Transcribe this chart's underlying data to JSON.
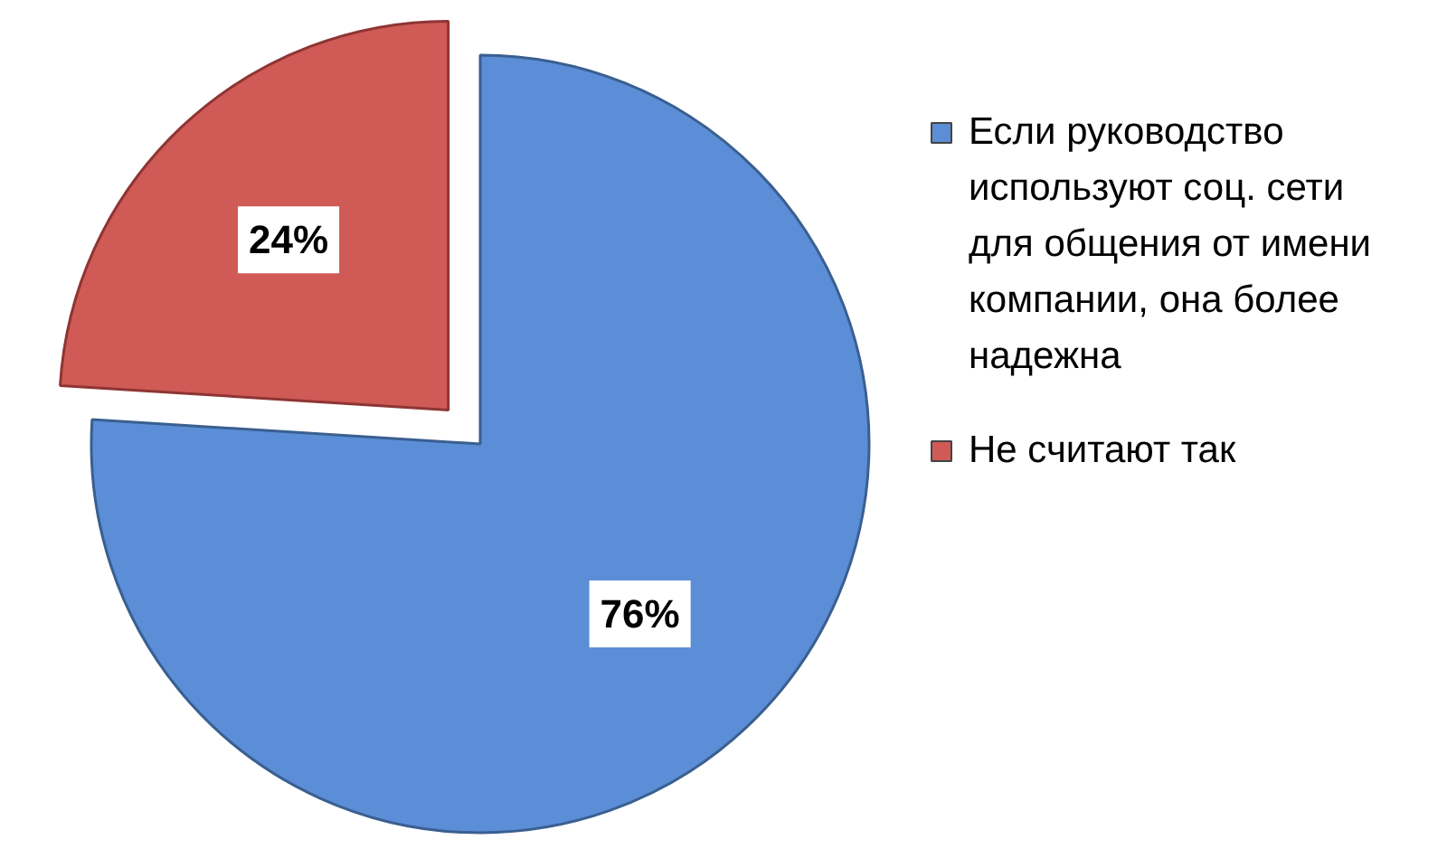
{
  "chart_data": {
    "type": "pie",
    "categories": [
      "Если руководство используют соц. сети для общения от имени компании, она более надежна",
      "Не считают так"
    ],
    "values": [
      76,
      24
    ],
    "colors": [
      "#5b8ed6",
      "#d05a56"
    ],
    "value_labels": [
      "76%",
      "24%"
    ],
    "legend": "right"
  }
}
